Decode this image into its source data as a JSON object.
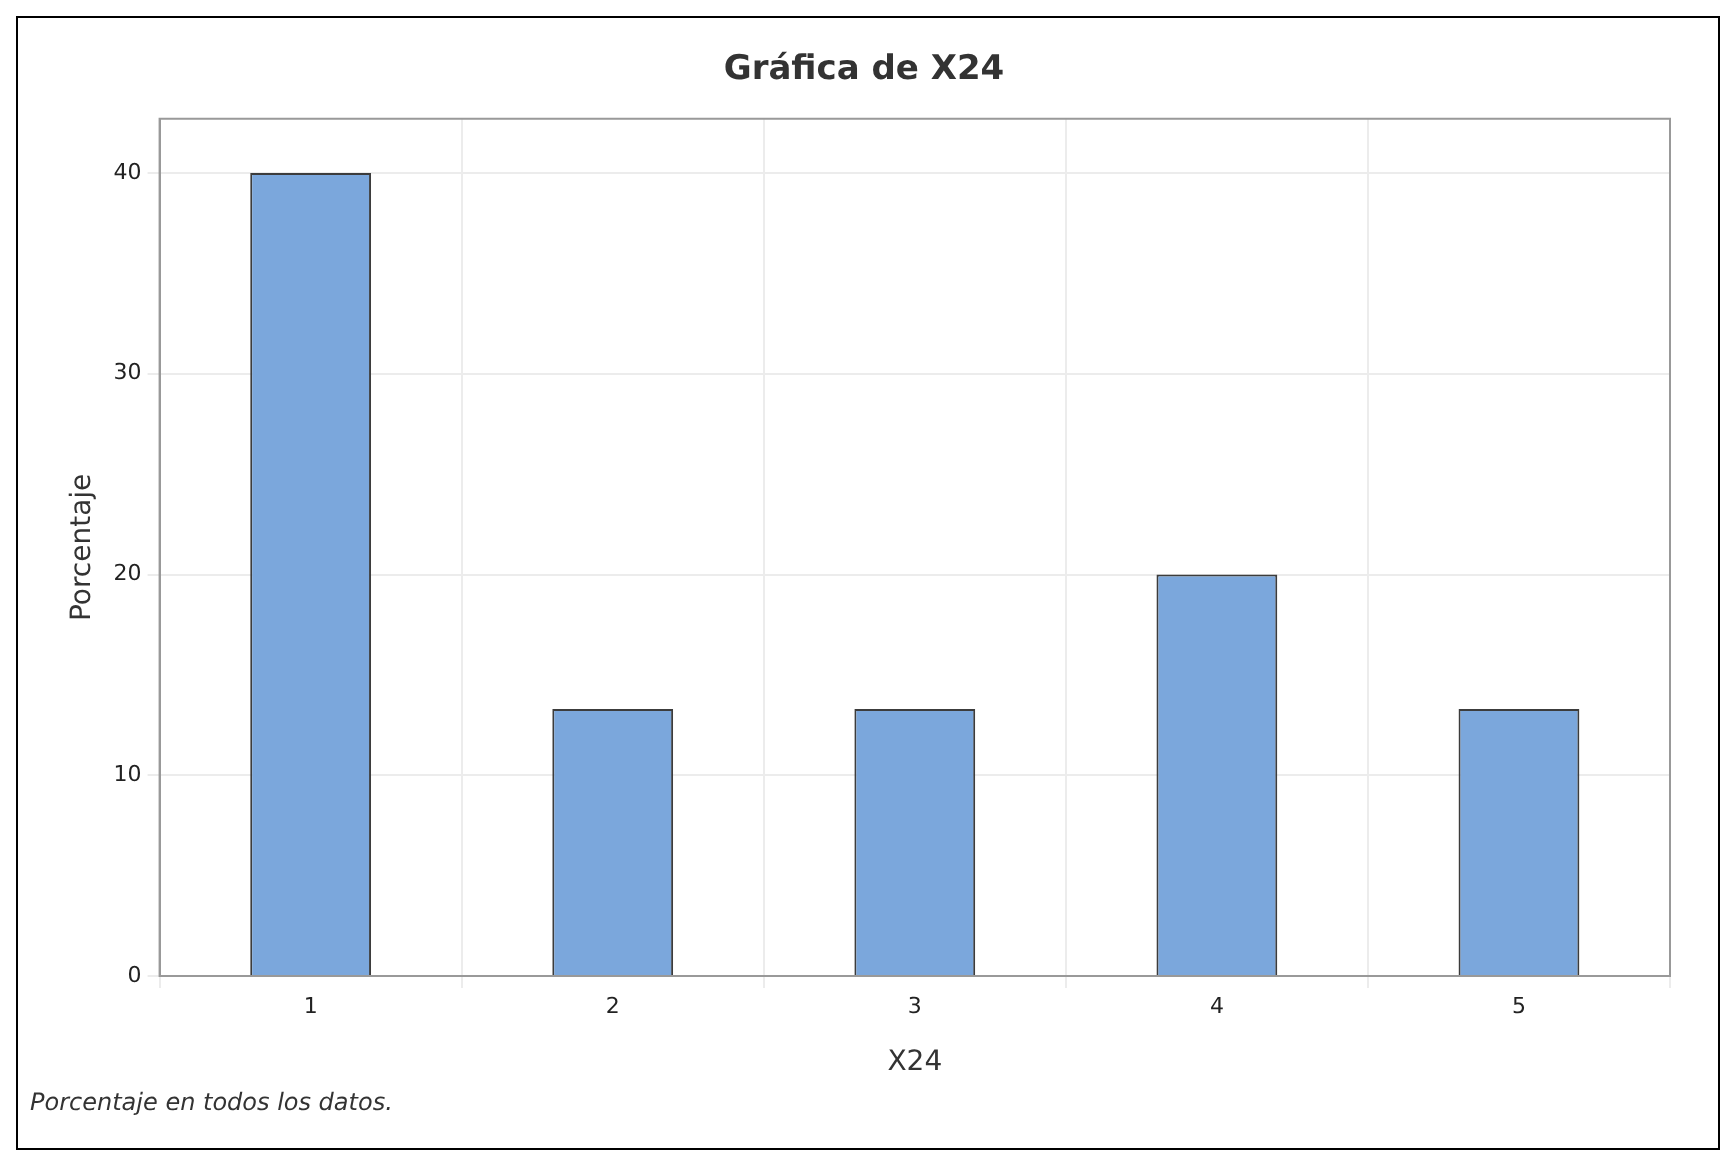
{
  "chart_data": {
    "type": "bar",
    "title": "Gráfica de X24",
    "xlabel": "X24",
    "ylabel": "Porcentaje",
    "categories": [
      "1",
      "2",
      "3",
      "4",
      "5"
    ],
    "values": [
      40,
      13.3,
      13.3,
      20,
      13.3
    ],
    "color": "#7ba7dc",
    "ylim": [
      0,
      42.7
    ],
    "yticks": [
      0,
      10,
      20,
      30,
      40
    ],
    "grid": true,
    "annotations": [
      "Porcentaje en todos los datos."
    ]
  }
}
